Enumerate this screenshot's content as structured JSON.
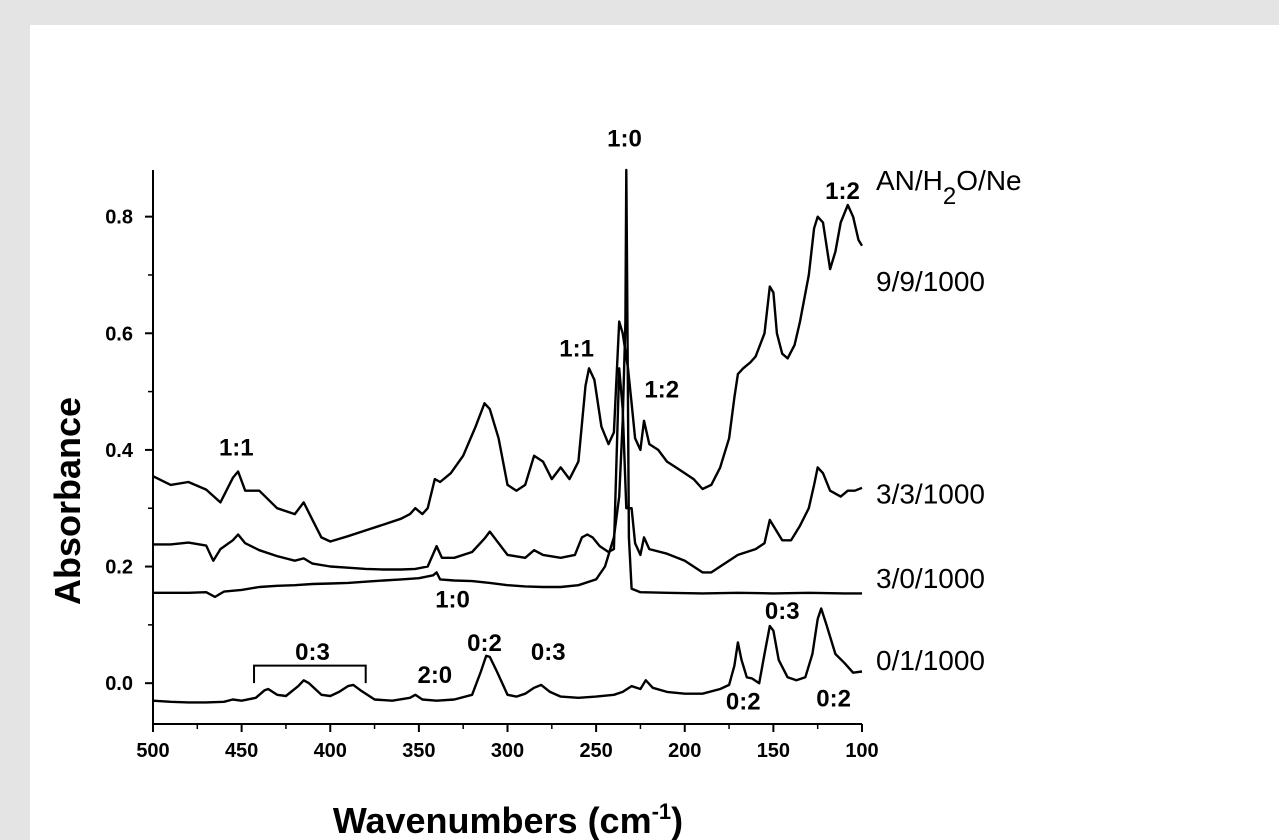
{
  "chart_data": {
    "type": "line",
    "xlabel": "Wavenumbers (cm",
    "xlabel_sup": "-1",
    "xlabel_end": ")",
    "ylabel": "Absorbance",
    "xlim": [
      500,
      100
    ],
    "ylim": [
      -0.07,
      0.88
    ],
    "x_reversed": true,
    "grid": false,
    "x_ticks": [
      500,
      450,
      400,
      350,
      300,
      250,
      200,
      150,
      100
    ],
    "x_tick_labels": [
      "500",
      "450",
      "400",
      "350",
      "300",
      "250",
      "200",
      "150",
      "100"
    ],
    "y_ticks": [
      0.0,
      0.2,
      0.4,
      0.6,
      0.8
    ],
    "y_tick_labels": [
      "0.0",
      "0.2",
      "0.4",
      "0.6",
      "0.8"
    ],
    "legend_header": {
      "pre": "AN/H",
      "sub": "2",
      "post": "O/Ne"
    },
    "series": [
      {
        "name": "9/9/1000",
        "label_value": 0.69,
        "points": [
          [
            500,
            0.355
          ],
          [
            490,
            0.34
          ],
          [
            480,
            0.345
          ],
          [
            470,
            0.332
          ],
          [
            462,
            0.31
          ],
          [
            455,
            0.352
          ],
          [
            452,
            0.363
          ],
          [
            448,
            0.33
          ],
          [
            440,
            0.33
          ],
          [
            430,
            0.3
          ],
          [
            420,
            0.29
          ],
          [
            415,
            0.31
          ],
          [
            410,
            0.28
          ],
          [
            405,
            0.25
          ],
          [
            400,
            0.243
          ],
          [
            390,
            0.252
          ],
          [
            380,
            0.262
          ],
          [
            370,
            0.272
          ],
          [
            360,
            0.282
          ],
          [
            355,
            0.29
          ],
          [
            352,
            0.3
          ],
          [
            348,
            0.29
          ],
          [
            345,
            0.3
          ],
          [
            341,
            0.35
          ],
          [
            338,
            0.345
          ],
          [
            332,
            0.36
          ],
          [
            325,
            0.39
          ],
          [
            318,
            0.44
          ],
          [
            313,
            0.48
          ],
          [
            310,
            0.47
          ],
          [
            305,
            0.42
          ],
          [
            300,
            0.34
          ],
          [
            295,
            0.33
          ],
          [
            290,
            0.34
          ],
          [
            285,
            0.39
          ],
          [
            280,
            0.38
          ],
          [
            275,
            0.35
          ],
          [
            270,
            0.37
          ],
          [
            265,
            0.35
          ],
          [
            260,
            0.38
          ],
          [
            256,
            0.51
          ],
          [
            254,
            0.54
          ],
          [
            251,
            0.52
          ],
          [
            247,
            0.44
          ],
          [
            243,
            0.41
          ],
          [
            240,
            0.43
          ],
          [
            237,
            0.62
          ],
          [
            235,
            0.6
          ],
          [
            232,
            0.54
          ],
          [
            230,
            0.48
          ],
          [
            228,
            0.42
          ],
          [
            225,
            0.4
          ],
          [
            223,
            0.45
          ],
          [
            220,
            0.41
          ],
          [
            215,
            0.4
          ],
          [
            210,
            0.38
          ],
          [
            205,
            0.37
          ],
          [
            200,
            0.36
          ],
          [
            195,
            0.35
          ],
          [
            190,
            0.333
          ],
          [
            185,
            0.34
          ],
          [
            180,
            0.37
          ],
          [
            175,
            0.42
          ],
          [
            172,
            0.49
          ],
          [
            170,
            0.53
          ],
          [
            167,
            0.54
          ],
          [
            163,
            0.55
          ],
          [
            160,
            0.56
          ],
          [
            155,
            0.6
          ],
          [
            152,
            0.68
          ],
          [
            150,
            0.67
          ],
          [
            148,
            0.6
          ],
          [
            145,
            0.565
          ],
          [
            142,
            0.557
          ],
          [
            138,
            0.58
          ],
          [
            135,
            0.62
          ],
          [
            130,
            0.7
          ],
          [
            127,
            0.78
          ],
          [
            125,
            0.8
          ],
          [
            122,
            0.79
          ],
          [
            118,
            0.71
          ],
          [
            115,
            0.74
          ],
          [
            112,
            0.79
          ],
          [
            108,
            0.82
          ],
          [
            105,
            0.8
          ],
          [
            102,
            0.76
          ],
          [
            100,
            0.75
          ]
        ]
      },
      {
        "name": "3/3/1000",
        "label_value": 0.325,
        "points": [
          [
            500,
            0.238
          ],
          [
            490,
            0.238
          ],
          [
            480,
            0.241
          ],
          [
            470,
            0.236
          ],
          [
            466,
            0.21
          ],
          [
            462,
            0.23
          ],
          [
            455,
            0.245
          ],
          [
            452,
            0.255
          ],
          [
            448,
            0.24
          ],
          [
            440,
            0.228
          ],
          [
            430,
            0.218
          ],
          [
            420,
            0.21
          ],
          [
            415,
            0.214
          ],
          [
            410,
            0.205
          ],
          [
            400,
            0.2
          ],
          [
            390,
            0.198
          ],
          [
            380,
            0.196
          ],
          [
            370,
            0.195
          ],
          [
            360,
            0.195
          ],
          [
            352,
            0.196
          ],
          [
            345,
            0.2
          ],
          [
            340,
            0.235
          ],
          [
            337,
            0.215
          ],
          [
            330,
            0.215
          ],
          [
            320,
            0.225
          ],
          [
            313,
            0.248
          ],
          [
            310,
            0.26
          ],
          [
            305,
            0.24
          ],
          [
            300,
            0.22
          ],
          [
            290,
            0.215
          ],
          [
            285,
            0.228
          ],
          [
            280,
            0.22
          ],
          [
            270,
            0.215
          ],
          [
            262,
            0.22
          ],
          [
            258,
            0.25
          ],
          [
            255,
            0.255
          ],
          [
            252,
            0.25
          ],
          [
            248,
            0.235
          ],
          [
            243,
            0.225
          ],
          [
            240,
            0.23
          ],
          [
            237,
            0.54
          ],
          [
            235,
            0.47
          ],
          [
            233,
            0.3
          ],
          [
            230,
            0.3
          ],
          [
            228,
            0.24
          ],
          [
            225,
            0.22
          ],
          [
            223,
            0.25
          ],
          [
            220,
            0.23
          ],
          [
            210,
            0.222
          ],
          [
            200,
            0.21
          ],
          [
            190,
            0.19
          ],
          [
            185,
            0.19
          ],
          [
            180,
            0.2
          ],
          [
            170,
            0.22
          ],
          [
            160,
            0.23
          ],
          [
            155,
            0.24
          ],
          [
            152,
            0.28
          ],
          [
            149,
            0.265
          ],
          [
            145,
            0.245
          ],
          [
            140,
            0.245
          ],
          [
            135,
            0.27
          ],
          [
            130,
            0.3
          ],
          [
            127,
            0.34
          ],
          [
            125,
            0.37
          ],
          [
            122,
            0.36
          ],
          [
            118,
            0.33
          ],
          [
            112,
            0.32
          ],
          [
            108,
            0.33
          ],
          [
            104,
            0.33
          ],
          [
            100,
            0.335
          ]
        ]
      },
      {
        "name": "3/0/1000",
        "label_value": 0.18,
        "points": [
          [
            500,
            0.155
          ],
          [
            480,
            0.155
          ],
          [
            470,
            0.156
          ],
          [
            465,
            0.148
          ],
          [
            460,
            0.157
          ],
          [
            450,
            0.16
          ],
          [
            440,
            0.165
          ],
          [
            430,
            0.167
          ],
          [
            420,
            0.168
          ],
          [
            410,
            0.17
          ],
          [
            400,
            0.171
          ],
          [
            390,
            0.172
          ],
          [
            380,
            0.174
          ],
          [
            370,
            0.176
          ],
          [
            360,
            0.178
          ],
          [
            350,
            0.18
          ],
          [
            342,
            0.185
          ],
          [
            340,
            0.19
          ],
          [
            338,
            0.178
          ],
          [
            330,
            0.176
          ],
          [
            320,
            0.175
          ],
          [
            310,
            0.172
          ],
          [
            300,
            0.168
          ],
          [
            290,
            0.166
          ],
          [
            280,
            0.165
          ],
          [
            270,
            0.165
          ],
          [
            260,
            0.168
          ],
          [
            250,
            0.178
          ],
          [
            245,
            0.2
          ],
          [
            240,
            0.25
          ],
          [
            237,
            0.32
          ],
          [
            235,
            0.45
          ],
          [
            233.5,
            0.62
          ],
          [
            233,
            0.88
          ],
          [
            232.5,
            0.7
          ],
          [
            231.5,
            0.25
          ],
          [
            230,
            0.162
          ],
          [
            225,
            0.156
          ],
          [
            210,
            0.155
          ],
          [
            190,
            0.154
          ],
          [
            170,
            0.155
          ],
          [
            150,
            0.154
          ],
          [
            130,
            0.155
          ],
          [
            110,
            0.154
          ],
          [
            100,
            0.154
          ]
        ]
      },
      {
        "name": "0/1/1000",
        "label_value": 0.04,
        "points": [
          [
            500,
            -0.03
          ],
          [
            490,
            -0.032
          ],
          [
            480,
            -0.033
          ],
          [
            470,
            -0.033
          ],
          [
            460,
            -0.032
          ],
          [
            455,
            -0.028
          ],
          [
            450,
            -0.03
          ],
          [
            442,
            -0.025
          ],
          [
            437,
            -0.012
          ],
          [
            435,
            -0.01
          ],
          [
            430,
            -0.02
          ],
          [
            425,
            -0.022
          ],
          [
            418,
            -0.005
          ],
          [
            415,
            0.005
          ],
          [
            412,
            0.0
          ],
          [
            405,
            -0.02
          ],
          [
            400,
            -0.022
          ],
          [
            395,
            -0.015
          ],
          [
            390,
            -0.005
          ],
          [
            387,
            -0.003
          ],
          [
            383,
            -0.012
          ],
          [
            375,
            -0.028
          ],
          [
            365,
            -0.03
          ],
          [
            355,
            -0.025
          ],
          [
            352,
            -0.02
          ],
          [
            348,
            -0.028
          ],
          [
            340,
            -0.03
          ],
          [
            330,
            -0.028
          ],
          [
            320,
            -0.02
          ],
          [
            315,
            0.02
          ],
          [
            312,
            0.047
          ],
          [
            310,
            0.045
          ],
          [
            306,
            0.02
          ],
          [
            300,
            -0.02
          ],
          [
            295,
            -0.023
          ],
          [
            290,
            -0.018
          ],
          [
            285,
            -0.008
          ],
          [
            281,
            -0.003
          ],
          [
            276,
            -0.015
          ],
          [
            270,
            -0.023
          ],
          [
            260,
            -0.025
          ],
          [
            250,
            -0.023
          ],
          [
            240,
            -0.02
          ],
          [
            235,
            -0.015
          ],
          [
            230,
            -0.005
          ],
          [
            225,
            -0.01
          ],
          [
            222,
            0.005
          ],
          [
            218,
            -0.008
          ],
          [
            210,
            -0.015
          ],
          [
            200,
            -0.018
          ],
          [
            190,
            -0.018
          ],
          [
            180,
            -0.01
          ],
          [
            175,
            -0.003
          ],
          [
            172,
            0.03
          ],
          [
            170,
            0.07
          ],
          [
            168,
            0.04
          ],
          [
            165,
            0.01
          ],
          [
            162,
            0.008
          ],
          [
            158,
            0.0
          ],
          [
            155,
            0.05
          ],
          [
            152,
            0.098
          ],
          [
            150,
            0.09
          ],
          [
            147,
            0.04
          ],
          [
            142,
            0.01
          ],
          [
            137,
            0.005
          ],
          [
            132,
            0.01
          ],
          [
            128,
            0.05
          ],
          [
            125,
            0.11
          ],
          [
            123,
            0.128
          ],
          [
            120,
            0.1
          ],
          [
            115,
            0.05
          ],
          [
            110,
            0.035
          ],
          [
            105,
            0.018
          ],
          [
            100,
            0.02
          ]
        ]
      }
    ],
    "annotations": [
      {
        "text": "1:0",
        "x": 234,
        "y": 0.92
      },
      {
        "text": "1:2",
        "x": 111,
        "y": 0.83
      },
      {
        "text": "1:1",
        "x": 261,
        "y": 0.56
      },
      {
        "text": "1:2",
        "x": 213,
        "y": 0.49
      },
      {
        "text": "1:1",
        "x": 453,
        "y": 0.39
      },
      {
        "text": "1:0",
        "x": 331,
        "y": 0.13
      },
      {
        "text": "0:3",
        "x": 410,
        "y": 0.04
      },
      {
        "text": "2:0",
        "x": 341,
        "y": 0.0
      },
      {
        "text": "0:2",
        "x": 313,
        "y": 0.055
      },
      {
        "text": "0:3",
        "x": 277,
        "y": 0.04
      },
      {
        "text": "0:3",
        "x": 145,
        "y": 0.11
      },
      {
        "text": "0:2",
        "x": 167,
        "y": -0.045
      },
      {
        "text": "0:2",
        "x": 116,
        "y": -0.04
      }
    ],
    "bracket": {
      "x1": 443,
      "x2": 380,
      "y": 0.03,
      "y_low": 0.0
    }
  }
}
